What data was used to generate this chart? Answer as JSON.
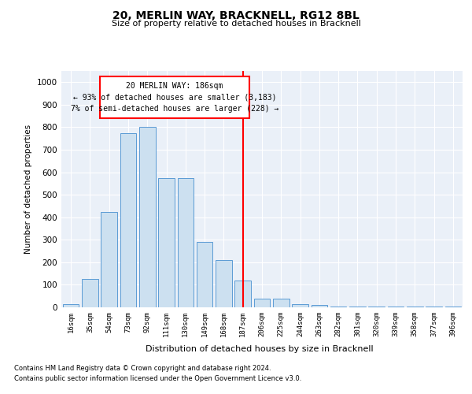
{
  "title": "20, MERLIN WAY, BRACKNELL, RG12 8BL",
  "subtitle": "Size of property relative to detached houses in Bracknell",
  "xlabel": "Distribution of detached houses by size in Bracknell",
  "ylabel": "Number of detached properties",
  "categories": [
    "16sqm",
    "35sqm",
    "54sqm",
    "73sqm",
    "92sqm",
    "111sqm",
    "130sqm",
    "149sqm",
    "168sqm",
    "187sqm",
    "206sqm",
    "225sqm",
    "244sqm",
    "263sqm",
    "282sqm",
    "301sqm",
    "320sqm",
    "339sqm",
    "358sqm",
    "377sqm",
    "396sqm"
  ],
  "values": [
    15,
    125,
    425,
    775,
    800,
    575,
    575,
    290,
    210,
    120,
    40,
    40,
    15,
    10,
    5,
    5,
    5,
    3,
    3,
    3,
    5
  ],
  "bar_color": "#cce0f0",
  "bar_edge_color": "#5b9bd5",
  "red_line_index": 9,
  "red_line_label": "20 MERLIN WAY: 186sqm",
  "annotation_line1": "← 93% of detached houses are smaller (3,183)",
  "annotation_line2": "7% of semi-detached houses are larger (228) →",
  "ylim": [
    0,
    1050
  ],
  "yticks": [
    0,
    100,
    200,
    300,
    400,
    500,
    600,
    700,
    800,
    900,
    1000
  ],
  "background_color": "#eaf0f8",
  "grid_color": "#ffffff",
  "footer1": "Contains HM Land Registry data © Crown copyright and database right 2024.",
  "footer2": "Contains public sector information licensed under the Open Government Licence v3.0."
}
